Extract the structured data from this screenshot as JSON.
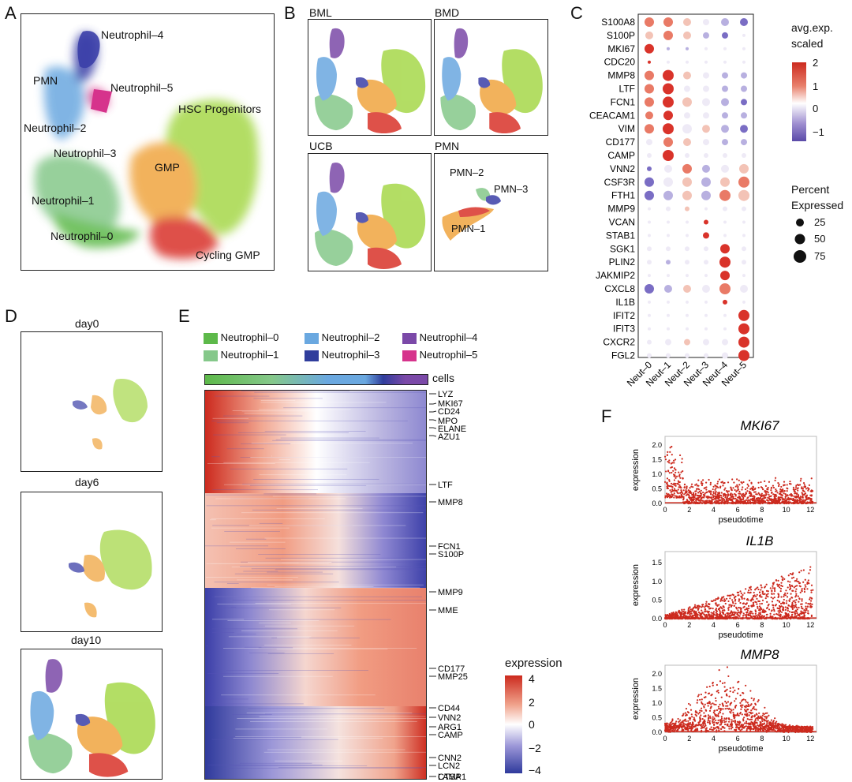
{
  "panels": {
    "A": {
      "letter": "A",
      "clusters": [
        "Neutrophil–4",
        "PMN",
        "Neutrophil–5",
        "Neutrophil–2",
        "HSC Progenitors",
        "Neutrophil–3",
        "GMP",
        "Neutrophil–1",
        "Neutrophil–0",
        "Cycling GMP"
      ]
    },
    "B": {
      "letter": "B",
      "subplots": [
        "BML",
        "BMD",
        "UCB",
        "PMN"
      ],
      "pmn_labels": [
        "PMN–2",
        "PMN–3",
        "PMN–1"
      ]
    },
    "C": {
      "letter": "C",
      "genes": [
        "S100A8",
        "S100P",
        "MKI67",
        "CDC20",
        "MMP8",
        "LTF",
        "FCN1",
        "CEACAM1",
        "VIM",
        "CD177",
        "CAMP",
        "VNN2",
        "CSF3R",
        "FTH1",
        "MMP9",
        "VCAN",
        "STAB1",
        "SGK1",
        "PLIN2",
        "JAKMIP2",
        "CXCL8",
        "IL1B",
        "IFIT2",
        "IFIT3",
        "CXCR2",
        "FGL2"
      ],
      "groups": [
        "Neut–0",
        "Neut–1",
        "Neut–2",
        "Neut–3",
        "Neut–4",
        "Neut–5"
      ],
      "color_legend_title": [
        "avg.exp.",
        "scaled"
      ],
      "color_ticks": [
        "2",
        "1",
        "0",
        "−1"
      ],
      "size_legend_title": [
        "Percent",
        "Expressed"
      ],
      "size_ticks": [
        "25",
        "50",
        "75"
      ]
    },
    "D": {
      "letter": "D",
      "days": [
        "day0",
        "day6",
        "day10"
      ]
    },
    "E": {
      "letter": "E",
      "legend": [
        "Neutrophil–0",
        "Neutrophil–2",
        "Neutrophil–4",
        "Neutrophil–1",
        "Neutrophil–3",
        "Neutrophil–5"
      ],
      "legend_colors": [
        "#5db94a",
        "#6aa8e0",
        "#7b49a8",
        "#85c88a",
        "#2f3d9c",
        "#d6338c"
      ],
      "cells_label": "cells",
      "genes": [
        "LYZ",
        "MKI67",
        "CD24",
        "MPO",
        "ELANE",
        "AZU1",
        "LTF",
        "MMP8",
        "FCN1",
        "S100P",
        "MMP9",
        "MME",
        "CD177",
        "MMP25",
        "CD44",
        "VNN2",
        "ARG1",
        "CAMP",
        "CNN2",
        "LCN2",
        "LAMP1",
        "CTSA"
      ],
      "scale_title": "expression",
      "scale_ticks": [
        "4",
        "2",
        "0",
        "−2",
        "−4"
      ]
    },
    "F": {
      "letter": "F",
      "plots": [
        {
          "gene": "MKI67",
          "ylabel": "expression",
          "xlabel": "pseudotime",
          "yticks": [
            "0.0",
            "0.5",
            "1.0",
            "1.5",
            "2.0"
          ],
          "xticks": [
            "0",
            "2",
            "4",
            "6",
            "8",
            "10",
            "12"
          ]
        },
        {
          "gene": "IL1B",
          "ylabel": "expression",
          "xlabel": "pseudotime",
          "yticks": [
            "0.0",
            "0.5",
            "1.0",
            "1.5"
          ],
          "xticks": [
            "0",
            "2",
            "4",
            "6",
            "8",
            "10",
            "12"
          ]
        },
        {
          "gene": "MMP8",
          "ylabel": "expression",
          "xlabel": "pseudotime",
          "yticks": [
            "0.0",
            "0.5",
            "1.0",
            "1.5",
            "2.0"
          ],
          "xticks": [
            "0",
            "2",
            "4",
            "6",
            "8",
            "10",
            "12"
          ]
        }
      ]
    }
  },
  "colors": {
    "neut0": "#5db94a",
    "neut1": "#85c88a",
    "neut2": "#6aa8e0",
    "neut3": "#2f3d9c",
    "neut4": "#7b49a8",
    "neut5": "#d6338c",
    "hsc": "#a6d84a",
    "gmp": "#f0a540",
    "cycling": "#d9332a",
    "red": "#cc2a1e",
    "blue": "#3b3fa8"
  }
}
